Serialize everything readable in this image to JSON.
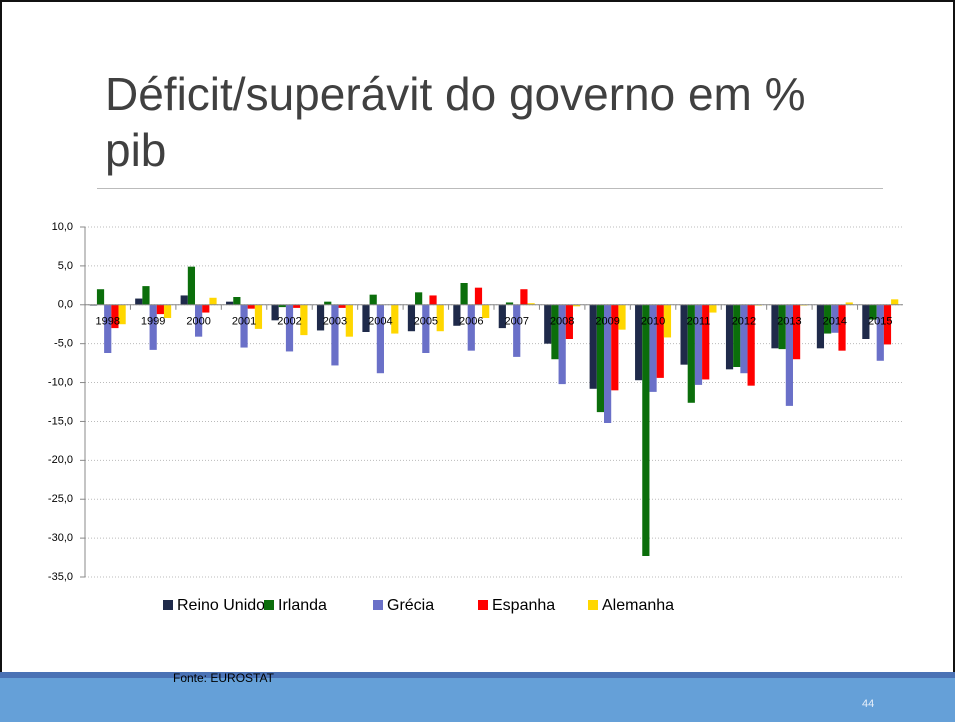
{
  "title": "Déficit/superávit do governo em % pib",
  "chart_data": {
    "type": "bar",
    "categories": [
      "1998",
      "1999",
      "2000",
      "2001",
      "2002",
      "2003",
      "2004",
      "2005",
      "2006",
      "2007",
      "2008",
      "2009",
      "2010",
      "2011",
      "2012",
      "2013",
      "2014",
      "2015"
    ],
    "series": [
      {
        "name": "Reino Unido",
        "color": "#1f2a4a",
        "values": [
          -0.1,
          0.8,
          1.2,
          0.4,
          -2.0,
          -3.3,
          -3.5,
          -3.4,
          -2.7,
          -3.0,
          -5.0,
          -10.8,
          -9.7,
          -7.7,
          -8.3,
          -5.6,
          -5.6,
          -4.4
        ]
      },
      {
        "name": "Irlanda",
        "color": "#0b6e0b",
        "values": [
          2.0,
          2.4,
          4.9,
          1.0,
          -0.3,
          0.4,
          1.3,
          1.6,
          2.8,
          0.3,
          -7.0,
          -13.8,
          -32.3,
          -12.6,
          -8.0,
          -5.7,
          -3.7,
          -1.9
        ]
      },
      {
        "name": "Grécia",
        "color": "#6a70c8",
        "values": [
          -6.2,
          -5.8,
          -4.1,
          -5.5,
          -6.0,
          -7.8,
          -8.8,
          -6.2,
          -5.9,
          -6.7,
          -10.2,
          -15.2,
          -11.2,
          -10.3,
          -8.8,
          -13.0,
          -3.6,
          -7.2
        ]
      },
      {
        "name": "Espanha",
        "color": "#ff0000",
        "values": [
          -3.0,
          -1.2,
          -1.0,
          -0.5,
          -0.4,
          -0.4,
          0.0,
          1.2,
          2.2,
          2.0,
          -4.4,
          -11.0,
          -9.4,
          -9.6,
          -10.4,
          -7.0,
          -5.9,
          -5.1
        ]
      },
      {
        "name": "Alemanha",
        "color": "#ffd700",
        "values": [
          -2.5,
          -1.7,
          0.9,
          -3.1,
          -3.9,
          -4.1,
          -3.7,
          -3.4,
          -1.7,
          0.2,
          -0.2,
          -3.2,
          -4.2,
          -1.0,
          -0.1,
          -0.1,
          0.3,
          0.7
        ]
      }
    ],
    "ylim": [
      -35,
      10
    ],
    "yticks": [
      {
        "value": 10,
        "label": "10,0"
      },
      {
        "value": 5,
        "label": "5,0"
      },
      {
        "value": 0,
        "label": "0,0"
      },
      {
        "value": -5,
        "label": "-5,0"
      },
      {
        "value": -10,
        "label": "-10,0"
      },
      {
        "value": -15,
        "label": "-15,0"
      },
      {
        "value": -20,
        "label": "-20,0"
      },
      {
        "value": -25,
        "label": "-25,0"
      },
      {
        "value": -30,
        "label": "-30,0"
      },
      {
        "value": -35,
        "label": "-35,0"
      }
    ],
    "grid": true,
    "legend": "bottom"
  },
  "source": "Fonte: EUROSTAT",
  "page_number": "44"
}
